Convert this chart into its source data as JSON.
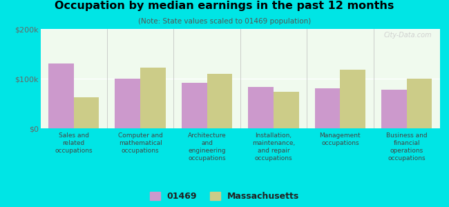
{
  "title": "Occupation by median earnings in the past 12 months",
  "subtitle": "(Note: State values scaled to 01469 population)",
  "categories": [
    "Sales and\nrelated\noccupations",
    "Computer and\nmathematical\noccupations",
    "Architecture\nand\nengineering\noccupations",
    "Installation,\nmaintenance,\nand repair\noccupations",
    "Management\noccupations",
    "Business and\nfinancial\noperations\noccupations"
  ],
  "values_01469": [
    130000,
    100000,
    92000,
    83000,
    80000,
    78000
  ],
  "values_mass": [
    63000,
    122000,
    110000,
    73000,
    118000,
    100000
  ],
  "color_01469": "#cc99cc",
  "color_mass": "#cccc88",
  "background_color": "#00e5e5",
  "plot_bg": "#f0faee",
  "ylim": [
    0,
    200000
  ],
  "yticks": [
    0,
    100000,
    200000
  ],
  "ytick_labels": [
    "$0",
    "$100k",
    "$200k"
  ],
  "legend_labels": [
    "01469",
    "Massachusetts"
  ],
  "watermark": "City-Data.com",
  "bar_width": 0.38
}
